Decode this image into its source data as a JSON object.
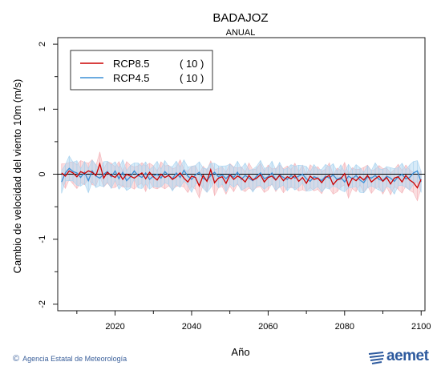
{
  "chart_data": {
    "type": "line",
    "title": "BADAJOZ",
    "subtitle": "ANUAL",
    "xlabel": "Año",
    "ylabel": "Cambio de velocidad del viento 10m (m/s)",
    "xlim": [
      2005,
      2101
    ],
    "ylim": [
      -2.1,
      2.1
    ],
    "xticks": [
      2020,
      2040,
      2060,
      2080,
      2100
    ],
    "yticks": [
      -2,
      -1,
      0,
      1,
      2
    ],
    "zero_line": true,
    "grid": false,
    "legend_position": "top-left",
    "x": [
      2006,
      2007,
      2008,
      2009,
      2010,
      2011,
      2012,
      2013,
      2014,
      2015,
      2016,
      2017,
      2018,
      2019,
      2020,
      2021,
      2022,
      2023,
      2024,
      2025,
      2026,
      2027,
      2028,
      2029,
      2030,
      2031,
      2032,
      2033,
      2034,
      2035,
      2036,
      2037,
      2038,
      2039,
      2040,
      2041,
      2042,
      2043,
      2044,
      2045,
      2046,
      2047,
      2048,
      2049,
      2050,
      2051,
      2052,
      2053,
      2054,
      2055,
      2056,
      2057,
      2058,
      2059,
      2060,
      2061,
      2062,
      2063,
      2064,
      2065,
      2066,
      2067,
      2068,
      2069,
      2070,
      2071,
      2072,
      2073,
      2074,
      2075,
      2076,
      2077,
      2078,
      2079,
      2080,
      2081,
      2082,
      2083,
      2084,
      2085,
      2086,
      2087,
      2088,
      2089,
      2090,
      2091,
      2092,
      2093,
      2094,
      2095,
      2096,
      2097,
      2098,
      2099,
      2100
    ],
    "series": [
      {
        "name": "RCP8.5",
        "models": "( 10 )",
        "color": "#cc0000",
        "band_color": "#f4b6bb",
        "values": [
          0.02,
          -0.03,
          0.05,
          0.02,
          -0.04,
          0.04,
          0.01,
          0.05,
          0.03,
          -0.02,
          0.16,
          -0.06,
          0.03,
          -0.02,
          -0.05,
          0.02,
          -0.08,
          0.0,
          -0.03,
          -0.06,
          -0.02,
          0.02,
          -0.07,
          0.03,
          -0.04,
          -0.09,
          0.0,
          -0.05,
          -0.02,
          -0.08,
          -0.04,
          0.02,
          -0.06,
          -0.12,
          -0.03,
          -0.05,
          -0.18,
          -0.02,
          -0.11,
          0.07,
          -0.13,
          -0.06,
          -0.04,
          -0.14,
          -0.01,
          -0.08,
          -0.03,
          -0.06,
          -0.12,
          -0.02,
          -0.09,
          -0.06,
          -0.01,
          -0.12,
          -0.05,
          -0.03,
          -0.09,
          -0.02,
          -0.1,
          -0.04,
          -0.07,
          -0.02,
          -0.11,
          -0.05,
          -0.14,
          -0.03,
          -0.08,
          -0.06,
          -0.13,
          -0.05,
          -0.02,
          -0.16,
          -0.09,
          -0.07,
          0.01,
          -0.18,
          -0.06,
          -0.1,
          -0.04,
          -0.09,
          -0.02,
          -0.12,
          -0.07,
          -0.03,
          -0.11,
          -0.05,
          -0.15,
          -0.06,
          -0.04,
          -0.12,
          -0.02,
          -0.09,
          -0.13,
          -0.21,
          -0.08
        ]
      },
      {
        "name": "RCP4.5",
        "models": "( 10 )",
        "color": "#3b8fd6",
        "band_color": "#a9d3ef",
        "values": [
          -0.12,
          0.02,
          0.09,
          0.04,
          0.02,
          -0.05,
          0.03,
          -0.1,
          0.05,
          -0.03,
          -0.06,
          0.0,
          0.04,
          -0.04,
          0.05,
          -0.07,
          0.03,
          -0.1,
          -0.04,
          0.05,
          -0.02,
          -0.05,
          0.02,
          -0.08,
          -0.03,
          0.0,
          -0.06,
          0.04,
          -0.02,
          -0.07,
          0.02,
          -0.05,
          0.06,
          -0.03,
          -0.08,
          -0.01,
          0.03,
          -0.06,
          -0.1,
          -0.02,
          0.03,
          -0.04,
          -0.01,
          -0.07,
          0.0,
          -0.05,
          0.03,
          -0.08,
          -0.02,
          -0.06,
          -0.1,
          -0.03,
          0.02,
          -0.07,
          -0.04,
          0.02,
          -0.09,
          -0.01,
          -0.05,
          -0.08,
          -0.02,
          -0.06,
          -0.03,
          0.0,
          -0.07,
          -0.11,
          -0.04,
          -0.06,
          -0.1,
          -0.03,
          -0.06,
          -0.01,
          -0.08,
          -0.05,
          -0.12,
          -0.03,
          -0.07,
          -0.02,
          -0.09,
          -0.13,
          -0.04,
          -0.06,
          -0.02,
          -0.08,
          -0.1,
          -0.03,
          -0.06,
          -0.11,
          -0.04,
          0.0,
          -0.07,
          -0.05,
          0.02,
          0.05,
          -0.12
        ]
      }
    ]
  },
  "footer": {
    "agency": "Agencia Estatal de Meteorología",
    "brand": "aemet"
  }
}
